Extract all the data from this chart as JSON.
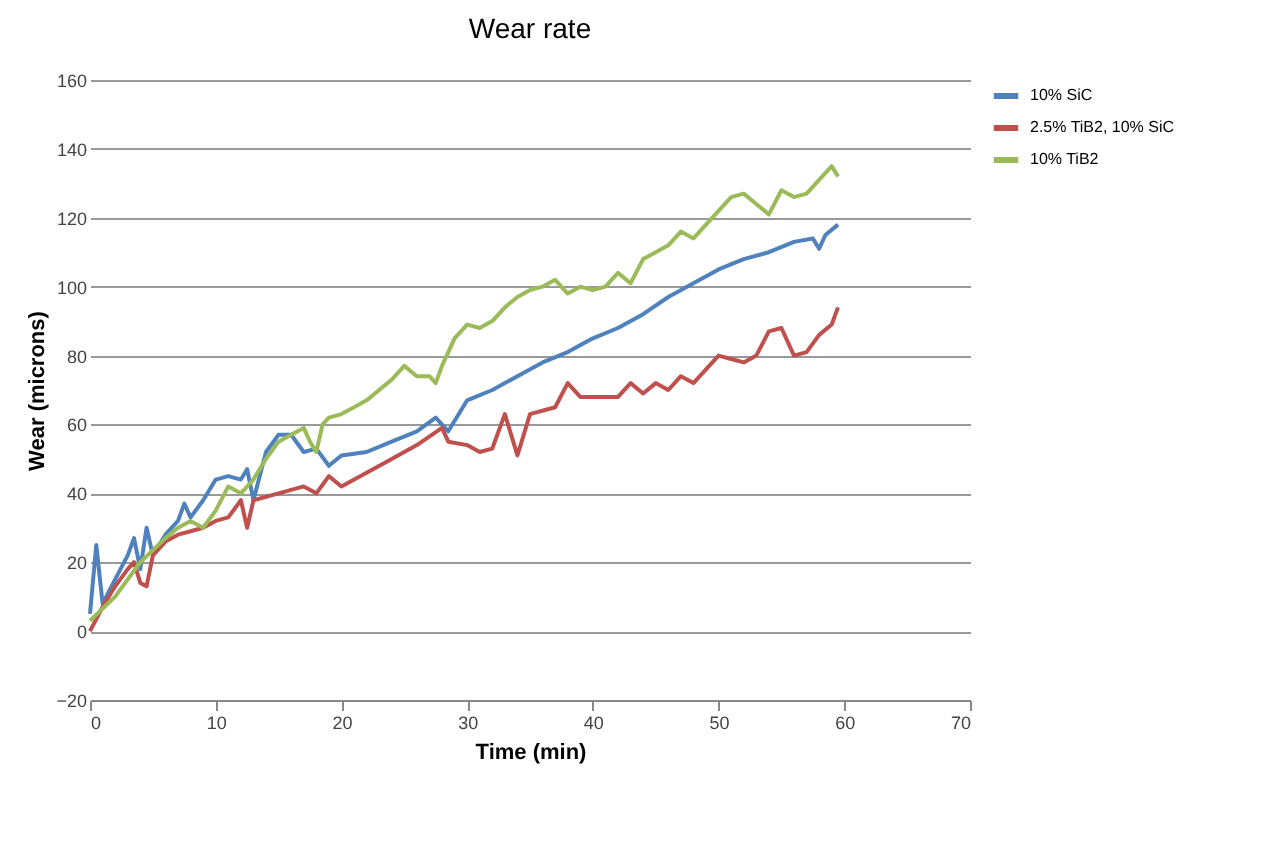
{
  "chart_data": {
    "type": "line",
    "title": "Wear rate",
    "xlabel": "Time (min)",
    "ylabel": "Wear (microns)",
    "xlim": [
      0,
      70
    ],
    "xticks": [
      0,
      10,
      20,
      30,
      40,
      50,
      60,
      70
    ],
    "ylim": [
      -20,
      160
    ],
    "yticks": [
      -20,
      0,
      20,
      40,
      60,
      80,
      100,
      120,
      140,
      160
    ],
    "grid": "y",
    "legend": "right",
    "marker": "none",
    "line_style": "solid",
    "series": [
      {
        "name": "10% SiC",
        "color": "#4f81bd",
        "x": [
          0,
          0.5,
          1,
          2,
          3,
          3.5,
          4,
          4.5,
          5,
          6,
          7,
          7.5,
          8,
          9,
          10,
          11,
          12,
          12.5,
          13,
          14,
          15,
          16,
          17,
          18,
          19,
          20,
          22,
          24,
          26,
          27.5,
          28.5,
          30,
          32,
          34,
          36,
          38,
          40,
          42,
          44,
          46,
          48,
          50,
          52,
          54,
          56,
          57.5,
          58,
          58.5,
          59.5
        ],
        "values": [
          5,
          25,
          8,
          15,
          22,
          27,
          18,
          30,
          22,
          28,
          32,
          37,
          33,
          38,
          44,
          45,
          44,
          47,
          38,
          52,
          57,
          57,
          52,
          53,
          48,
          51,
          52,
          55,
          58,
          62,
          58,
          67,
          70,
          74,
          78,
          81,
          85,
          88,
          92,
          97,
          101,
          105,
          108,
          110,
          113,
          114,
          111,
          115,
          118
        ]
      },
      {
        "name": "2.5% TiB2, 10% SiC",
        "color": "#c0504d",
        "x": [
          0,
          1,
          2,
          3,
          3.5,
          4,
          4.5,
          5,
          6,
          7,
          8,
          9,
          10,
          11,
          12,
          12.5,
          13,
          15,
          17,
          18,
          19,
          20,
          22,
          24,
          26,
          28,
          28.5,
          30,
          31,
          32,
          33,
          34,
          35,
          37,
          38,
          39,
          40,
          42,
          43,
          44,
          45,
          46,
          47,
          48,
          49,
          50,
          51,
          52,
          53,
          54,
          55,
          56,
          57,
          58,
          59,
          59.5
        ],
        "values": [
          0,
          7,
          13,
          18,
          20,
          14,
          13,
          22,
          26,
          28,
          29,
          30,
          32,
          33,
          38,
          30,
          38,
          40,
          42,
          40,
          45,
          42,
          46,
          50,
          54,
          59,
          55,
          54,
          52,
          53,
          63,
          51,
          63,
          65,
          72,
          68,
          68,
          68,
          72,
          69,
          72,
          70,
          74,
          72,
          76,
          80,
          79,
          78,
          80,
          87,
          88,
          80,
          81,
          86,
          89,
          94
        ]
      },
      {
        "name": "10% TiB2",
        "color": "#9bbb59",
        "x": [
          0,
          2,
          4,
          6,
          7,
          8,
          9,
          10,
          11,
          12,
          13,
          14,
          15,
          16,
          17,
          17.5,
          18,
          18.5,
          19,
          20,
          21,
          22,
          23,
          24,
          25,
          26,
          27,
          27.5,
          28,
          29,
          30,
          31,
          32,
          33,
          34,
          35,
          36,
          37,
          38,
          39,
          40,
          41,
          42,
          43,
          44,
          45,
          46,
          47,
          48,
          49,
          50,
          51,
          52,
          53,
          54,
          55,
          56,
          57,
          58,
          59,
          59.5
        ],
        "values": [
          3,
          10,
          20,
          27,
          30,
          32,
          30,
          35,
          42,
          40,
          44,
          50,
          55,
          57,
          59,
          55,
          52,
          60,
          62,
          63,
          65,
          67,
          70,
          73,
          77,
          74,
          74,
          72,
          77,
          85,
          89,
          88,
          90,
          94,
          97,
          99,
          100,
          102,
          98,
          100,
          99,
          100,
          104,
          101,
          108,
          110,
          112,
          116,
          114,
          118,
          122,
          126,
          127,
          124,
          121,
          128,
          126,
          127,
          131,
          135,
          132
        ]
      }
    ]
  }
}
